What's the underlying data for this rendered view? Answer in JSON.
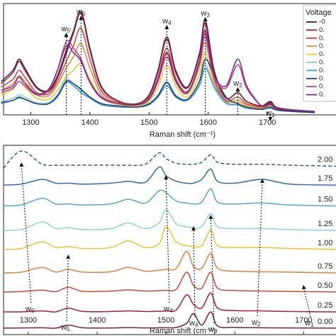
{
  "chart_data": [
    {
      "type": "line",
      "xlabel": "Raman shift (cm⁻¹)",
      "xlim": [
        1254,
        1816
      ],
      "xticks": [
        1300,
        1400,
        1500,
        1600,
        1700
      ],
      "ylim": [
        0,
        10
      ],
      "legend_title": "Voltage",
      "legend": "upper right",
      "x": [
        1250,
        1270,
        1280,
        1290,
        1310,
        1330,
        1345,
        1360,
        1372,
        1385,
        1400,
        1420,
        1450,
        1480,
        1500,
        1515,
        1530,
        1545,
        1565,
        1585,
        1595,
        1610,
        1630,
        1650,
        1665,
        1690,
        1705,
        1720,
        1780
      ],
      "series": [
        {
          "name": "-0",
          "color": "#4b1c47",
          "values": [
            3.0,
            4.0,
            5.0,
            4.2,
            2.5,
            2.2,
            3.5,
            5.8,
            7.5,
            9.3,
            6.0,
            2.5,
            1.2,
            1.0,
            1.8,
            4.0,
            7.0,
            4.0,
            2.5,
            5.5,
            8.5,
            4.0,
            1.5,
            2.0,
            1.2,
            0.8,
            1.2,
            0.6,
            0.3
          ]
        },
        {
          "name": "0.",
          "color": "#8e1d3b",
          "values": [
            2.8,
            3.8,
            4.8,
            4.0,
            2.4,
            2.1,
            3.3,
            5.5,
            7.3,
            9.1,
            5.8,
            2.4,
            1.2,
            1.0,
            1.7,
            3.8,
            6.8,
            3.8,
            2.4,
            5.3,
            8.2,
            3.8,
            1.5,
            2.0,
            1.2,
            0.8,
            1.1,
            0.6,
            0.3
          ]
        },
        {
          "name": "0.",
          "color": "#c9433a",
          "values": [
            2.5,
            3.2,
            4.0,
            3.4,
            2.0,
            1.9,
            3.0,
            4.8,
            6.2,
            7.8,
            5.0,
            2.1,
            1.1,
            0.9,
            1.5,
            3.3,
            6.0,
            3.3,
            2.1,
            4.6,
            7.3,
            3.3,
            1.3,
            1.6,
            1.0,
            0.7,
            1.0,
            0.5,
            0.3
          ]
        },
        {
          "name": "0.",
          "color": "#e5853e",
          "values": [
            2.2,
            2.8,
            3.5,
            3.0,
            1.8,
            1.7,
            2.7,
            4.2,
            5.2,
            6.4,
            4.2,
            1.8,
            1.0,
            0.9,
            1.4,
            3.0,
            5.5,
            3.0,
            1.9,
            4.3,
            6.5,
            3.0,
            1.2,
            1.3,
            0.9,
            0.6,
            0.9,
            0.5,
            0.3
          ]
        },
        {
          "name": "0.",
          "color": "#f2c431",
          "values": [
            1.8,
            2.3,
            3.0,
            2.5,
            1.5,
            1.4,
            2.2,
            3.4,
            4.0,
            4.6,
            3.2,
            1.5,
            0.9,
            0.8,
            1.2,
            2.5,
            4.5,
            2.6,
            1.6,
            3.6,
            5.6,
            2.6,
            1.0,
            1.1,
            0.8,
            0.5,
            0.8,
            0.4,
            0.2
          ]
        },
        {
          "name": "0.",
          "color": "#86cde4",
          "values": [
            1.2,
            1.5,
            1.8,
            1.6,
            1.1,
            1.1,
            1.8,
            3.2,
            2.8,
            2.2,
            1.6,
            1.0,
            0.8,
            0.7,
            1.0,
            1.8,
            3.0,
            1.8,
            1.4,
            2.8,
            4.6,
            2.4,
            1.0,
            0.9,
            0.7,
            0.5,
            0.6,
            0.4,
            0.2
          ]
        },
        {
          "name": "0.",
          "color": "#3f9bd3",
          "values": [
            1.0,
            1.3,
            1.5,
            1.4,
            1.0,
            1.0,
            1.6,
            2.9,
            2.6,
            2.0,
            1.5,
            0.9,
            0.7,
            0.7,
            0.9,
            1.6,
            2.6,
            1.6,
            1.3,
            2.6,
            4.2,
            2.6,
            1.1,
            0.9,
            0.6,
            0.5,
            0.6,
            0.4,
            0.2
          ]
        },
        {
          "name": "0.",
          "color": "#1c3f78",
          "values": [
            1.1,
            1.3,
            1.6,
            1.4,
            1.0,
            1.0,
            1.7,
            3.0,
            2.8,
            2.3,
            1.6,
            1.0,
            0.8,
            0.7,
            1.0,
            1.7,
            2.9,
            1.7,
            1.4,
            3.0,
            5.0,
            3.6,
            1.6,
            1.0,
            0.7,
            0.5,
            0.7,
            0.4,
            0.2
          ]
        },
        {
          "name": "0.",
          "color": "#b4408e",
          "values": [
            2.0,
            2.4,
            3.0,
            2.6,
            1.8,
            2.2,
            4.0,
            6.6,
            6.0,
            5.0,
            3.0,
            1.6,
            1.0,
            0.9,
            1.4,
            3.0,
            5.2,
            3.0,
            2.0,
            4.6,
            7.0,
            3.4,
            2.4,
            4.5,
            2.4,
            0.8,
            0.9,
            0.5,
            0.3
          ]
        },
        {
          "name": "0.",
          "color": "#7a2d86",
          "values": [
            2.2,
            2.6,
            3.4,
            2.8,
            1.9,
            2.3,
            4.0,
            6.2,
            5.6,
            4.8,
            2.9,
            1.5,
            1.0,
            0.9,
            1.4,
            3.2,
            5.6,
            3.1,
            2.0,
            4.8,
            7.6,
            3.6,
            2.6,
            5.0,
            2.6,
            0.8,
            1.0,
            0.5,
            0.3
          ]
        }
      ],
      "annotations": [
        {
          "text": "w",
          "sub": "5",
          "x": 1385
        },
        {
          "text": "w",
          "sub": "5'",
          "x": 1360
        },
        {
          "text": "w",
          "sub": "4",
          "x": 1530
        },
        {
          "text": "w",
          "sub": "3",
          "x": 1595
        },
        {
          "text": "w",
          "sub": "2",
          "x": 1650
        },
        {
          "text": "w",
          "sub": "1",
          "x": 1705
        }
      ]
    },
    {
      "type": "line",
      "xlabel": "Raman shift (cm⁻¹)",
      "xlim": [
        1264,
        1747
      ],
      "xticks": [
        1300,
        1400,
        1500,
        1600,
        1700
      ],
      "ylim": [
        0,
        10
      ],
      "x": [
        1264,
        1290,
        1320,
        1340,
        1358,
        1380,
        1420,
        1445,
        1470,
        1490,
        1500,
        1515,
        1530,
        1540,
        1552,
        1565,
        1575,
        1600,
        1640,
        1680,
        1747
      ],
      "series": [
        {
          "name": "0.00",
          "color": "#7a1f4a",
          "values": [
            0.34,
            0.35,
            0.36,
            0.34,
            0.5,
            0.36,
            0.35,
            0.37,
            0.35,
            0.36,
            0.36,
            0.38,
            0.6,
            1.1,
            0.5,
            1.2,
            0.45,
            0.38,
            0.36,
            0.35,
            0.34
          ]
        },
        {
          "name": "0.25",
          "color": "#a8213a",
          "values": [
            1.2,
            1.2,
            1.25,
            1.2,
            1.4,
            1.22,
            1.22,
            1.25,
            1.22,
            1.23,
            1.25,
            1.3,
            2.1,
            1.6,
            1.4,
            2.2,
            1.4,
            1.27,
            1.25,
            1.22,
            1.2
          ]
        },
        {
          "name": "0.50",
          "color": "#cc4a3a",
          "values": [
            2.25,
            2.27,
            2.35,
            2.27,
            2.5,
            2.28,
            2.3,
            2.36,
            2.3,
            2.32,
            2.34,
            2.4,
            3.3,
            2.6,
            2.45,
            3.3,
            2.45,
            2.33,
            2.3,
            2.28,
            2.25
          ]
        },
        {
          "name": "0.75",
          "color": "#e3813f",
          "values": [
            3.26,
            3.3,
            3.55,
            3.3,
            3.45,
            3.3,
            3.32,
            3.55,
            3.35,
            3.4,
            3.45,
            3.5,
            4.4,
            3.6,
            3.5,
            4.3,
            3.5,
            3.35,
            3.32,
            3.3,
            3.26
          ]
        },
        {
          "name": "1.00",
          "color": "#efc22e",
          "values": [
            4.5,
            4.55,
            4.9,
            4.6,
            4.65,
            4.55,
            4.6,
            4.95,
            4.6,
            4.8,
            5.7,
            4.9,
            4.7,
            4.65,
            4.7,
            5.5,
            4.7,
            4.6,
            4.6,
            4.55,
            4.5
          ]
        },
        {
          "name": "1.25",
          "color": "#8fd0e6",
          "values": [
            5.5,
            5.55,
            5.95,
            5.6,
            5.65,
            5.55,
            5.6,
            5.9,
            5.6,
            5.9,
            6.6,
            5.85,
            5.7,
            5.65,
            5.7,
            6.4,
            5.7,
            5.6,
            5.6,
            5.55,
            5.5
          ]
        },
        {
          "name": "1.50",
          "color": "#4fa8d8",
          "values": [
            6.8,
            6.85,
            7.2,
            6.9,
            6.9,
            6.85,
            6.9,
            7.15,
            6.95,
            7.6,
            7.5,
            7.05,
            6.95,
            6.9,
            7.0,
            7.7,
            7.0,
            6.9,
            6.95,
            6.85,
            6.8
          ]
        },
        {
          "name": "1.75",
          "color": "#2f6fb0",
          "values": [
            7.9,
            7.95,
            8.2,
            8.0,
            8.0,
            7.95,
            8.0,
            8.1,
            8.05,
            8.85,
            8.4,
            8.1,
            8.0,
            8.0,
            8.2,
            8.75,
            8.1,
            8.0,
            8.2,
            7.95,
            7.9
          ]
        },
        {
          "name": "2.00",
          "color": "#2b5fa0",
          "dashed": true,
          "values": [
            8.8,
            9.7,
            9.0,
            8.95,
            8.95,
            8.95,
            8.95,
            8.95,
            9.0,
            9.6,
            9.3,
            9.05,
            9.0,
            9.0,
            9.1,
            9.5,
            9.1,
            9.0,
            9.0,
            8.95,
            8.9
          ]
        }
      ],
      "annotations": [
        {
          "text": "w",
          "sub": "5'",
          "x": 1290
        },
        {
          "text": "w",
          "sub": "5",
          "x": 1358
        },
        {
          "text": "w",
          "sub": "4'",
          "x": 1500
        },
        {
          "text": "w",
          "sub": "4",
          "x": 1540
        },
        {
          "text": "w",
          "sub": "3",
          "x": 1565
        },
        {
          "text": "w",
          "sub": "2",
          "x": 1640
        },
        {
          "text": "w",
          "sub": "1",
          "x": 1700
        }
      ]
    }
  ]
}
